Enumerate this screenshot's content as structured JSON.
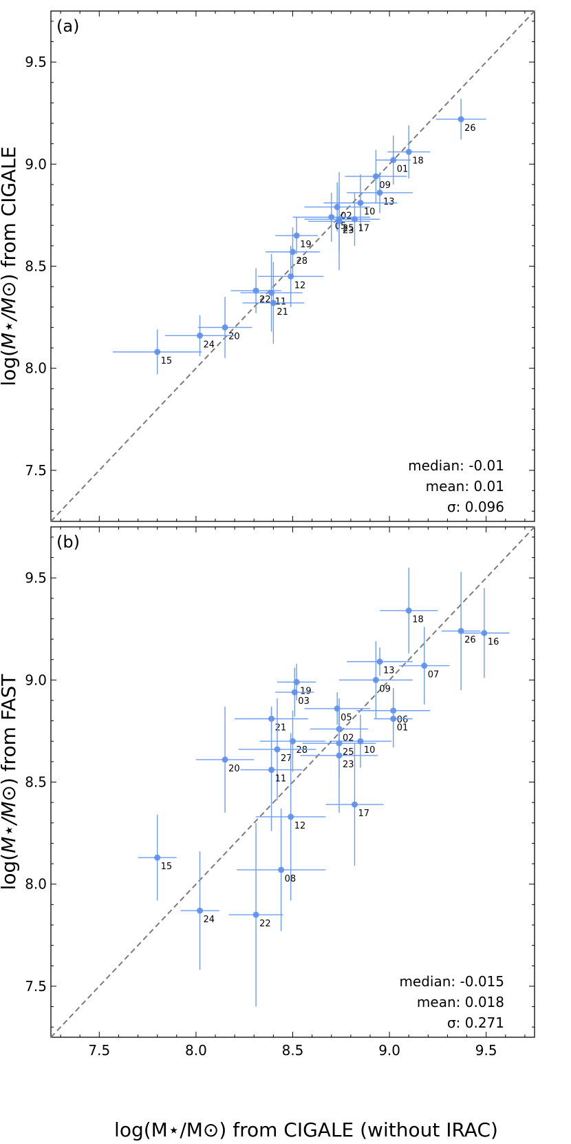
{
  "chart_data": [
    {
      "type": "scatter",
      "panel_label": "(a)",
      "xlabel": "log(M⋆/M⊙) from CIGALE (without IRAC)",
      "ylabel_prefix": "log(",
      "ylabel_math": "M⋆/M⊙",
      "ylabel_suffix": ") from CIGALE",
      "xlim": [
        7.25,
        9.75
      ],
      "ylim": [
        7.25,
        9.75
      ],
      "yticks": [
        7.5,
        8.0,
        8.5,
        9.0,
        9.5
      ],
      "ytick_labels": [
        "7.5",
        "8.0",
        "8.5",
        "9.0",
        "9.5"
      ],
      "stats": [
        "median: -0.01",
        "mean: 0.01",
        "σ: 0.096"
      ],
      "points": [
        {
          "label": "26",
          "x": 9.37,
          "y": 9.22,
          "xerr": 0.13,
          "yerr": 0.1
        },
        {
          "label": "18",
          "x": 9.1,
          "y": 9.06,
          "xerr": 0.11,
          "yerr": 0.13
        },
        {
          "label": "01",
          "x": 9.02,
          "y": 9.02,
          "xerr": 0.09,
          "yerr": 0.12
        },
        {
          "label": "09",
          "x": 8.93,
          "y": 8.94,
          "xerr": 0.16,
          "yerr": 0.13
        },
        {
          "label": "13",
          "x": 8.95,
          "y": 8.86,
          "xerr": 0.17,
          "yerr": 0.1
        },
        {
          "label": "10",
          "x": 8.85,
          "y": 8.81,
          "xerr": 0.19,
          "yerr": 0.14
        },
        {
          "label": "02",
          "x": 8.73,
          "y": 8.79,
          "xerr": 0.17,
          "yerr": 0.12
        },
        {
          "label": "05",
          "x": 8.7,
          "y": 8.74,
          "xerr": 0.2,
          "yerr": 0.12
        },
        {
          "label": "25",
          "x": 8.74,
          "y": 8.73,
          "xerr": 0.18,
          "yerr": 0.16
        },
        {
          "label": "17",
          "x": 8.82,
          "y": 8.73,
          "xerr": 0.13,
          "yerr": 0.13
        },
        {
          "label": "23",
          "x": 8.74,
          "y": 8.72,
          "xerr": 0.16,
          "yerr": 0.24
        },
        {
          "label": "19",
          "x": 8.52,
          "y": 8.65,
          "xerr": 0.11,
          "yerr": 0.09
        },
        {
          "label": "28",
          "x": 8.5,
          "y": 8.57,
          "xerr": 0.14,
          "yerr": 0.12
        },
        {
          "label": "12",
          "x": 8.49,
          "y": 8.45,
          "xerr": 0.17,
          "yerr": 0.15
        },
        {
          "label": "22",
          "x": 8.31,
          "y": 8.38,
          "xerr": 0.13,
          "yerr": 0.11
        },
        {
          "label": "11",
          "x": 8.39,
          "y": 8.37,
          "xerr": 0.16,
          "yerr": 0.19
        },
        {
          "label": "21",
          "x": 8.4,
          "y": 8.32,
          "xerr": 0.16,
          "yerr": 0.2
        },
        {
          "label": "20",
          "x": 8.15,
          "y": 8.2,
          "xerr": 0.14,
          "yerr": 0.15
        },
        {
          "label": "24",
          "x": 8.02,
          "y": 8.16,
          "xerr": 0.18,
          "yerr": 0.1
        },
        {
          "label": "15",
          "x": 7.8,
          "y": 8.08,
          "xerr": 0.23,
          "yerr": 0.11
        }
      ]
    },
    {
      "type": "scatter",
      "panel_label": "(b)",
      "xlabel": "log(M⋆/M⊙) from CIGALE (without IRAC)",
      "ylabel_prefix": "log(",
      "ylabel_math": "M⋆/M⊙",
      "ylabel_suffix": ") from FAST",
      "xlim": [
        7.25,
        9.75
      ],
      "ylim": [
        7.25,
        9.75
      ],
      "xticks": [
        7.5,
        8.0,
        8.5,
        9.0,
        9.5
      ],
      "xtick_labels": [
        "7.5",
        "8.0",
        "8.5",
        "9.0",
        "9.5"
      ],
      "yticks": [
        7.5,
        8.0,
        8.5,
        9.0,
        9.5
      ],
      "ytick_labels": [
        "7.5",
        "8.0",
        "8.5",
        "9.0",
        "9.5"
      ],
      "stats": [
        "median: -0.015",
        "mean: 0.018",
        "σ: 0.271"
      ],
      "points": [
        {
          "label": "18",
          "x": 9.1,
          "y": 9.34,
          "xerr": 0.15,
          "yerr": 0.21
        },
        {
          "label": "26",
          "x": 9.37,
          "y": 9.24,
          "xerr": 0.1,
          "yerr": 0.29
        },
        {
          "label": "16",
          "x": 9.49,
          "y": 9.23,
          "xerr": 0.13,
          "yerr": 0.22
        },
        {
          "label": "13",
          "x": 8.95,
          "y": 9.09,
          "xerr": 0.17,
          "yerr": 0.07
        },
        {
          "label": "07",
          "x": 9.18,
          "y": 9.07,
          "xerr": 0.13,
          "yerr": 0.19
        },
        {
          "label": "09",
          "x": 8.93,
          "y": 9.0,
          "xerr": 0.19,
          "yerr": 0.19
        },
        {
          "label": "19",
          "x": 8.52,
          "y": 8.99,
          "xerr": 0.1,
          "yerr": 0.09
        },
        {
          "label": "03",
          "x": 8.51,
          "y": 8.94,
          "xerr": 0.1,
          "yerr": 0.12
        },
        {
          "label": "05",
          "x": 8.73,
          "y": 8.86,
          "xerr": 0.17,
          "yerr": 0.08
        },
        {
          "label": "06",
          "x": 9.02,
          "y": 8.85,
          "xerr": 0.19,
          "yerr": 0.11
        },
        {
          "label": "01",
          "x": 9.02,
          "y": 8.81,
          "xerr": 0.1,
          "yerr": 0.14
        },
        {
          "label": "21",
          "x": 8.39,
          "y": 8.81,
          "xerr": 0.19,
          "yerr": 0.06
        },
        {
          "label": "02",
          "x": 8.74,
          "y": 8.76,
          "xerr": 0.15,
          "yerr": 0.12
        },
        {
          "label": "28",
          "x": 8.5,
          "y": 8.7,
          "xerr": 0.17,
          "yerr": 0.15
        },
        {
          "label": "25",
          "x": 8.74,
          "y": 8.69,
          "xerr": 0.19,
          "yerr": 0.17
        },
        {
          "label": "10",
          "x": 8.85,
          "y": 8.7,
          "xerr": 0.16,
          "yerr": 0.13
        },
        {
          "label": "27",
          "x": 8.42,
          "y": 8.66,
          "xerr": 0.2,
          "yerr": 0.25
        },
        {
          "label": "23",
          "x": 8.74,
          "y": 8.63,
          "xerr": 0.2,
          "yerr": 0.28
        },
        {
          "label": "20",
          "x": 8.15,
          "y": 8.61,
          "xerr": 0.15,
          "yerr": 0.26
        },
        {
          "label": "11",
          "x": 8.39,
          "y": 8.56,
          "xerr": 0.16,
          "yerr": 0.3
        },
        {
          "label": "17",
          "x": 8.82,
          "y": 8.39,
          "xerr": 0.15,
          "yerr": 0.3
        },
        {
          "label": "12",
          "x": 8.49,
          "y": 8.33,
          "xerr": 0.18,
          "yerr": 0.41
        },
        {
          "label": "15",
          "x": 7.8,
          "y": 8.13,
          "xerr": 0.1,
          "yerr": 0.21
        },
        {
          "label": "08",
          "x": 8.44,
          "y": 8.07,
          "xerr": 0.23,
          "yerr": 0.3
        },
        {
          "label": "24",
          "x": 8.02,
          "y": 7.87,
          "xerr": 0.1,
          "yerr": 0.29
        },
        {
          "label": "22",
          "x": 8.31,
          "y": 7.85,
          "xerr": 0.14,
          "yerr": 0.45
        }
      ]
    }
  ]
}
